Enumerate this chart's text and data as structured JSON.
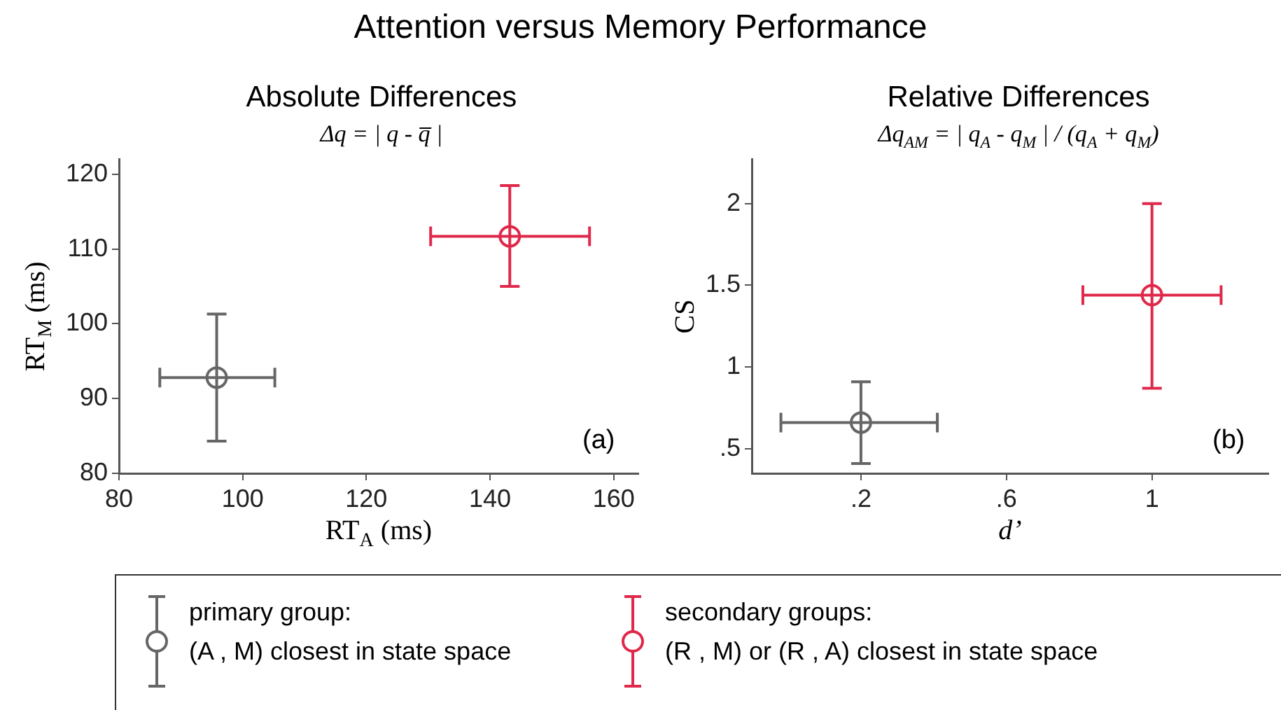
{
  "chart_data": [
    {
      "type": "scatter",
      "title": "Absolute Differences",
      "subtitle": "Δq =  | q - q̅ |",
      "xlabel": "RT$_{A}$ (ms)",
      "ylabel": "RT$_{M}$ (ms)",
      "annotations": [
        "Attention versus Memory Performance",
        "(a)"
      ],
      "xlim": [
        80,
        164
      ],
      "ylim": [
        80,
        122
      ],
      "xticks": [
        80,
        100,
        120,
        140,
        160
      ],
      "yticks": [
        80,
        90,
        100,
        110,
        120
      ],
      "grid": false,
      "legend": "bottom",
      "marker": "circle",
      "series": [
        {
          "name": "primary group:\n(A , M) closest in state space",
          "color": "#666666",
          "x": [
            95.8
          ],
          "values": [
            92.8
          ],
          "errors": [
            [
              84.3,
              101.3
            ]
          ],
          "xerrors": [
            [
              86.6,
              105.2
            ]
          ]
        },
        {
          "name": "secondary groups:\n(R , M) or (R , A) closest in state space",
          "color": "#e0284a",
          "x": [
            143.2
          ],
          "values": [
            111.7
          ],
          "errors": [
            [
              105.0,
              118.5
            ]
          ],
          "xerrors": [
            [
              130.4,
              156.1
            ]
          ]
        }
      ]
    },
    {
      "type": "scatter",
      "title": "Relative Differences",
      "subtitle": "Δq$_{AM}$ = | q$_{A}$ - q$_{M}$ | / (q$_{A}$ + q$_{M}$)",
      "xlabel": "d’",
      "ylabel": "CS",
      "annotations": [
        "(b)"
      ],
      "xlim": [
        -0.1,
        1.32
      ],
      "ylim": [
        0.35,
        2.27
      ],
      "xticks": [
        {
          "value": 0.2,
          "label": ".2"
        },
        {
          "value": 0.6,
          "label": ".6"
        },
        1
      ],
      "yticks": [
        {
          "value": 0.5,
          "label": ".5"
        },
        1,
        1.5,
        2
      ],
      "grid": false,
      "marker": "circle",
      "series": [
        {
          "color": "#666666",
          "x": [
            0.2
          ],
          "values": [
            0.66
          ],
          "errors": [
            [
              0.41,
              0.91
            ]
          ],
          "xerrors": [
            [
              -0.02,
              0.41
            ]
          ]
        },
        {
          "color": "#e0284a",
          "x": [
            1.0
          ],
          "values": [
            1.44
          ],
          "errors": [
            [
              0.87,
              2.0
            ]
          ],
          "xerrors": [
            [
              0.81,
              1.19
            ]
          ]
        }
      ]
    }
  ]
}
